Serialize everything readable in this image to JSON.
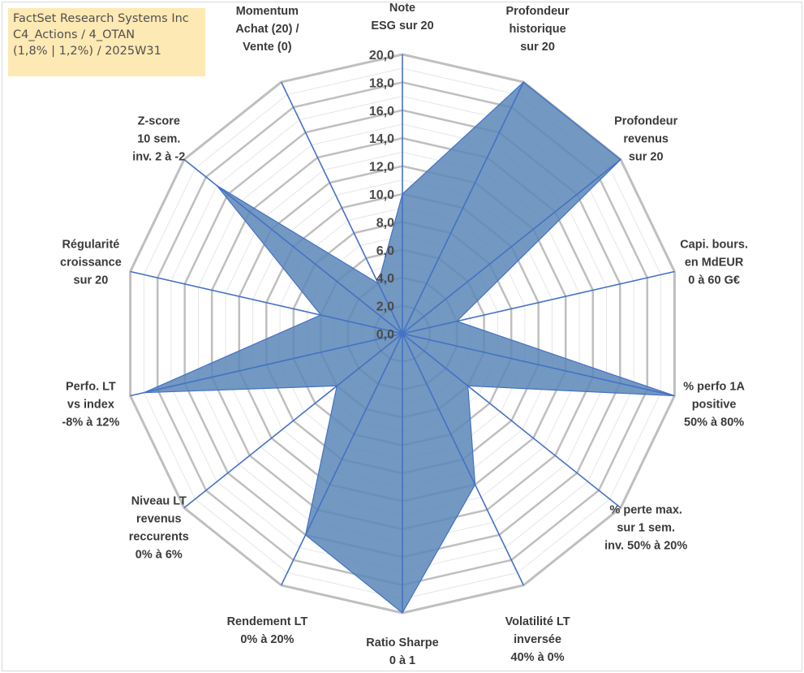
{
  "header": {
    "lines": [
      "FactSet Research Systems Inc",
      "C4_Actions / 4_OTAN",
      "(1,8% | 1,2%) / 2025W31"
    ]
  },
  "chart_data": {
    "type": "radar",
    "rlim": [
      0,
      20
    ],
    "ticks": [
      "0,0",
      "2,0",
      "4,0",
      "6,0",
      "8,0",
      "10,0",
      "12,0",
      "14,0",
      "16,0",
      "18,0",
      "20,0"
    ],
    "grid": true,
    "colors": {
      "fill": "#5b86b7",
      "stroke": "#4472c4",
      "axis": "#4472c4",
      "grid_major": "#bfbfbf",
      "grid_minor": "#e6e6e6"
    },
    "axes": [
      {
        "label": [
          "Note",
          "ESG sur 20"
        ],
        "value": 10
      },
      {
        "label": [
          "Profondeur",
          "historique",
          "sur 20"
        ],
        "value": 20
      },
      {
        "label": [
          "Profondeur",
          "revenus",
          "sur 20"
        ],
        "value": 20
      },
      {
        "label": [
          "Capi. bours.",
          "en MdEUR",
          "0 à 60 G€"
        ],
        "value": 4
      },
      {
        "label": [
          "% perfo 1A",
          "positive",
          "50% à 80%"
        ],
        "value": 20
      },
      {
        "label": [
          "% perte max.",
          "sur 1 sem.",
          "inv. 50% à 20%"
        ],
        "value": 6
      },
      {
        "label": [
          "Volatilité LT",
          "inversée",
          "40% à 0%"
        ],
        "value": 12
      },
      {
        "label": [
          "Ratio Sharpe",
          "0 à 1"
        ],
        "value": 20
      },
      {
        "label": [
          "Rendement LT",
          "0% à 20%"
        ],
        "value": 16
      },
      {
        "label": [
          "Niveau LT",
          "revenus",
          "reccurents",
          "0% à 6%"
        ],
        "value": 6
      },
      {
        "label": [
          "Perfo. LT",
          "vs index",
          "-8% à 12%"
        ],
        "value": 19
      },
      {
        "label": [
          "Régularité",
          "croissance",
          "sur 20"
        ],
        "value": 6
      },
      {
        "label": [
          "Z-score",
          "10 sem.",
          "inv. 2 à -2"
        ],
        "value": 17
      },
      {
        "label": [
          "Momentum",
          "Achat (20) /",
          "Vente (0)"
        ],
        "value": 4
      }
    ]
  }
}
